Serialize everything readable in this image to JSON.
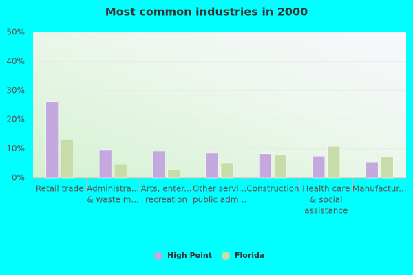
{
  "chart_data": {
    "type": "bar",
    "title": "Most common industries in 2000",
    "categories": [
      [
        "Retail trade"
      ],
      [
        "Administra...",
        "& waste m..."
      ],
      [
        "Arts, enter...",
        "recreation"
      ],
      [
        "Other servi...",
        "public adm..."
      ],
      [
        "Construction"
      ],
      [
        "Health care",
        "& social",
        "assistance"
      ],
      [
        "Manufactur..."
      ]
    ],
    "series": [
      {
        "name": "High Point",
        "color": "#c3a9dd",
        "values": [
          26.2,
          9.7,
          9.2,
          8.5,
          8.3,
          7.5,
          5.4
        ]
      },
      {
        "name": "Florida",
        "color": "#c8dcaa",
        "values": [
          13.4,
          4.7,
          2.8,
          5.2,
          8.0,
          10.8,
          7.3
        ]
      }
    ],
    "ylim": [
      0,
      50
    ],
    "yticks": [
      {
        "value": 0,
        "label": "0%"
      },
      {
        "value": 10,
        "label": "10%"
      },
      {
        "value": 20,
        "label": "20%"
      },
      {
        "value": 30,
        "label": "30%"
      },
      {
        "value": 40,
        "label": "40%"
      },
      {
        "value": 50,
        "label": "50%"
      }
    ],
    "grid": true,
    "legend": "bottom"
  }
}
